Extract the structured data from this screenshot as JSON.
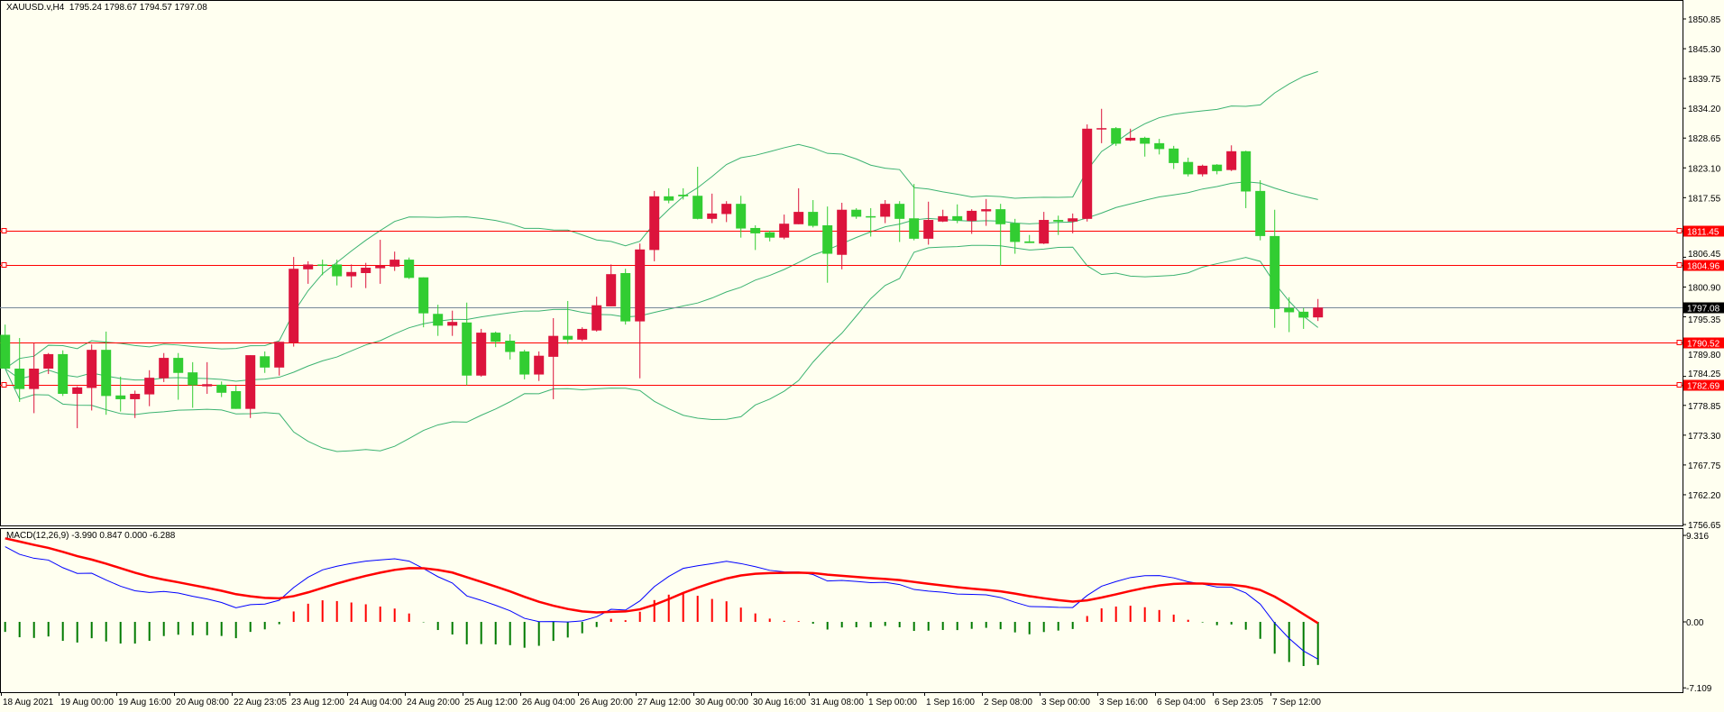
{
  "header": {
    "symbol": "XAUUSD.v,H4",
    "ohlc": "1795.24 1798.67 1794.57 1797.08"
  },
  "macd_panel": {
    "label": "MACD(12,26,9) -3.990 0.847 0.000 -6.288",
    "axis_ticks": [
      "9.316",
      "0.00",
      "-7.109"
    ],
    "axis_values": [
      9.316,
      0.0,
      -7.109
    ]
  },
  "colors": {
    "background": "#FFFFF0",
    "bull_candle": "#DC143C",
    "bear_candle": "#32CD32",
    "bands": "#3CB371",
    "hline": "#FF0000",
    "price_line": "#778899",
    "macd_main": "#0000FF",
    "macd_signal": "#FF0000",
    "hist_pos": "#FF0000",
    "hist_neg": "#007A00"
  },
  "price_axis": {
    "ticks": [
      "1850.85",
      "1845.30",
      "1839.75",
      "1834.20",
      "1828.65",
      "1823.10",
      "1817.55",
      "1806.45",
      "1800.90",
      "1795.35",
      "1789.80",
      "1784.25",
      "1778.85",
      "1773.30",
      "1767.75",
      "1762.20",
      "1756.65"
    ],
    "range": [
      1756.65,
      1850.85
    ]
  },
  "horizontal_lines": [
    {
      "price": 1811.45,
      "label": "1811.45"
    },
    {
      "price": 1804.96,
      "label": "1804.96"
    },
    {
      "price": 1790.52,
      "label": "1790.52"
    },
    {
      "price": 1782.69,
      "label": "1782.69"
    }
  ],
  "current_price": {
    "price": 1797.08,
    "label": "1797.08"
  },
  "time_axis": {
    "labels": [
      "18 Aug 2021",
      "19 Aug 00:00",
      "19 Aug 16:00",
      "20 Aug 08:00",
      "22 Aug 23:05",
      "23 Aug 12:00",
      "24 Aug 04:00",
      "24 Aug 20:00",
      "25 Aug 12:00",
      "26 Aug 04:00",
      "26 Aug 20:00",
      "27 Aug 12:00",
      "30 Aug 00:00",
      "30 Aug 16:00",
      "31 Aug 08:00",
      "1 Sep 00:00",
      "1 Sep 16:00",
      "2 Sep 08:00",
      "3 Sep 00:00",
      "3 Sep 16:00",
      "6 Sep 04:00",
      "6 Sep 23:05",
      "7 Sep 12:00"
    ],
    "bars_per_label": 4
  },
  "chart_data": {
    "type": "candlestick",
    "title": "XAUUSD.v,H4",
    "indicators": [
      "Bollinger Bands(20,2)",
      "MACD(12,26,9)"
    ],
    "ylim": [
      1756.65,
      1850.85
    ],
    "ohlc": [
      [
        1792.0,
        1793.9,
        1785.7,
        1785.7
      ],
      [
        1785.7,
        1791.4,
        1779.5,
        1781.9
      ],
      [
        1781.9,
        1790.5,
        1777.4,
        1785.7
      ],
      [
        1785.7,
        1788.6,
        1784.7,
        1788.4
      ],
      [
        1788.4,
        1789.1,
        1780.6,
        1781.0
      ],
      [
        1781.0,
        1782.4,
        1774.6,
        1782.2
      ],
      [
        1782.1,
        1790.2,
        1777.9,
        1789.2
      ],
      [
        1789.2,
        1792.6,
        1777.1,
        1780.6
      ],
      [
        1780.7,
        1784.2,
        1777.7,
        1780.0
      ],
      [
        1780.0,
        1781.6,
        1776.5,
        1781.0
      ],
      [
        1780.9,
        1785.4,
        1778.7,
        1784.0
      ],
      [
        1783.9,
        1788.6,
        1783.2,
        1787.7
      ],
      [
        1787.7,
        1788.6,
        1779.9,
        1784.9
      ],
      [
        1785.0,
        1786.9,
        1778.4,
        1782.6
      ],
      [
        1782.4,
        1786.9,
        1781.0,
        1782.8
      ],
      [
        1782.7,
        1783.3,
        1780.4,
        1781.2
      ],
      [
        1781.5,
        1782.5,
        1778.2,
        1778.2
      ],
      [
        1778.2,
        1788.2,
        1776.5,
        1788.2
      ],
      [
        1788.0,
        1788.9,
        1784.9,
        1785.9
      ],
      [
        1785.9,
        1790.7,
        1784.4,
        1790.7
      ],
      [
        1790.5,
        1806.5,
        1789.8,
        1804.3
      ],
      [
        1804.2,
        1805.7,
        1801.5,
        1805.1
      ],
      [
        1805.1,
        1806.0,
        1803.1,
        1804.9
      ],
      [
        1805.1,
        1806.0,
        1801.2,
        1802.9
      ],
      [
        1802.9,
        1805.1,
        1800.8,
        1803.7
      ],
      [
        1803.5,
        1805.4,
        1800.7,
        1804.5
      ],
      [
        1804.4,
        1809.7,
        1801.5,
        1804.9
      ],
      [
        1804.7,
        1807.5,
        1803.9,
        1806.0
      ],
      [
        1806.0,
        1806.4,
        1802.4,
        1802.6
      ],
      [
        1802.7,
        1802.7,
        1793.4,
        1796.0
      ],
      [
        1795.9,
        1797.6,
        1791.8,
        1793.7
      ],
      [
        1793.7,
        1796.5,
        1791.8,
        1794.4
      ],
      [
        1794.3,
        1798.0,
        1782.6,
        1784.4
      ],
      [
        1784.4,
        1793.1,
        1784.2,
        1792.4
      ],
      [
        1792.4,
        1792.6,
        1789.7,
        1790.7
      ],
      [
        1790.9,
        1792.1,
        1787.4,
        1788.8
      ],
      [
        1788.9,
        1789.2,
        1783.7,
        1784.6
      ],
      [
        1784.6,
        1788.9,
        1783.4,
        1788.1
      ],
      [
        1787.9,
        1795.1,
        1780.0,
        1791.8
      ],
      [
        1791.8,
        1798.3,
        1790.3,
        1791.1
      ],
      [
        1791.1,
        1793.4,
        1790.8,
        1793.1
      ],
      [
        1792.8,
        1799.1,
        1792.6,
        1797.5
      ],
      [
        1797.3,
        1805.1,
        1797.3,
        1803.3
      ],
      [
        1803.5,
        1804.3,
        1793.9,
        1794.5
      ],
      [
        1794.5,
        1809.0,
        1783.9,
        1807.9
      ],
      [
        1807.8,
        1818.8,
        1805.7,
        1817.8
      ],
      [
        1817.8,
        1819.3,
        1816.5,
        1817.0
      ],
      [
        1818.1,
        1819.3,
        1817.2,
        1817.8
      ],
      [
        1817.9,
        1823.3,
        1813.5,
        1813.6
      ],
      [
        1813.6,
        1818.3,
        1812.8,
        1814.6
      ],
      [
        1814.5,
        1816.9,
        1813.0,
        1816.4
      ],
      [
        1816.4,
        1817.9,
        1810.1,
        1811.8
      ],
      [
        1811.9,
        1812.4,
        1807.8,
        1810.9
      ],
      [
        1811.1,
        1811.4,
        1809.4,
        1810.1
      ],
      [
        1810.1,
        1814.4,
        1809.8,
        1812.7
      ],
      [
        1812.6,
        1819.3,
        1812.6,
        1814.9
      ],
      [
        1814.9,
        1817.1,
        1812.0,
        1812.3
      ],
      [
        1812.4,
        1815.9,
        1801.7,
        1807.1
      ],
      [
        1806.9,
        1816.6,
        1804.2,
        1815.3
      ],
      [
        1815.3,
        1815.6,
        1813.6,
        1814.0
      ],
      [
        1814.1,
        1815.6,
        1810.3,
        1814.0
      ],
      [
        1814.0,
        1817.1,
        1812.8,
        1816.4
      ],
      [
        1816.4,
        1816.9,
        1809.3,
        1813.6
      ],
      [
        1813.7,
        1820.1,
        1809.6,
        1809.9
      ],
      [
        1809.9,
        1816.8,
        1808.8,
        1813.4
      ],
      [
        1813.1,
        1815.3,
        1813.0,
        1814.1
      ],
      [
        1814.1,
        1816.3,
        1812.8,
        1813.3
      ],
      [
        1813.2,
        1815.4,
        1810.8,
        1815.1
      ],
      [
        1815.0,
        1817.3,
        1812.3,
        1815.4
      ],
      [
        1815.4,
        1816.4,
        1804.9,
        1812.6
      ],
      [
        1812.8,
        1813.6,
        1807.1,
        1809.3
      ],
      [
        1809.4,
        1810.6,
        1809.1,
        1809.1
      ],
      [
        1809.0,
        1814.9,
        1808.9,
        1813.4
      ],
      [
        1813.4,
        1814.2,
        1810.6,
        1813.1
      ],
      [
        1813.1,
        1814.6,
        1810.9,
        1813.7
      ],
      [
        1813.6,
        1831.2,
        1813.1,
        1830.4
      ],
      [
        1830.3,
        1834.1,
        1827.7,
        1830.5
      ],
      [
        1830.5,
        1830.7,
        1827.2,
        1827.6
      ],
      [
        1828.2,
        1830.4,
        1828.1,
        1828.7
      ],
      [
        1828.7,
        1828.9,
        1825.2,
        1827.6
      ],
      [
        1827.7,
        1828.5,
        1825.6,
        1826.6
      ],
      [
        1826.7,
        1827.2,
        1822.9,
        1824.0
      ],
      [
        1824.2,
        1825.0,
        1821.5,
        1821.9
      ],
      [
        1821.9,
        1823.7,
        1821.5,
        1823.5
      ],
      [
        1823.7,
        1823.8,
        1821.9,
        1822.5
      ],
      [
        1822.7,
        1827.3,
        1822.5,
        1826.2
      ],
      [
        1826.2,
        1826.3,
        1815.6,
        1818.7
      ],
      [
        1818.8,
        1820.8,
        1809.6,
        1810.4
      ],
      [
        1810.4,
        1815.3,
        1793.3,
        1796.8
      ],
      [
        1797.0,
        1799.0,
        1792.5,
        1796.2
      ],
      [
        1796.3,
        1797.0,
        1793.1,
        1795.2
      ],
      [
        1795.24,
        1798.67,
        1794.57,
        1797.08
      ]
    ],
    "macd_seed": {
      "main": 8.1,
      "signal": 9.0
    }
  }
}
